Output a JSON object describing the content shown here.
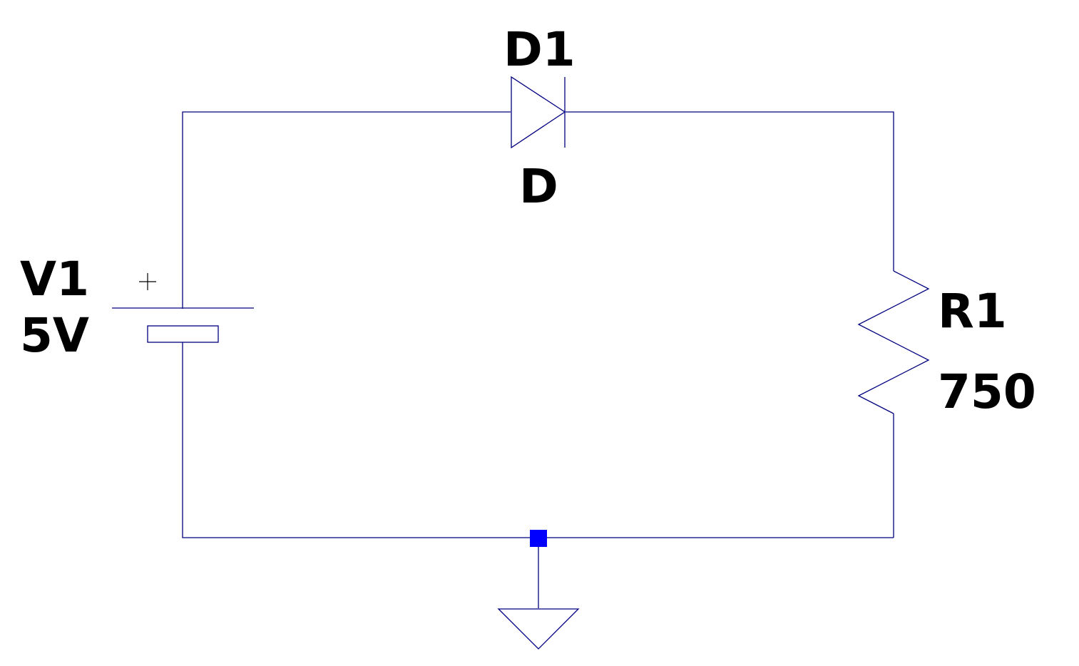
{
  "components": {
    "voltage_source": {
      "name": "V1",
      "value": "5V",
      "polarity_symbol": "+"
    },
    "diode": {
      "name": "D1",
      "model": "D"
    },
    "resistor": {
      "name": "R1",
      "value": "750"
    },
    "ground": {
      "name": "ground"
    }
  },
  "colors": {
    "wire": "#000080",
    "junction": "#0000ff",
    "text": "#000000",
    "background": "#ffffff"
  }
}
